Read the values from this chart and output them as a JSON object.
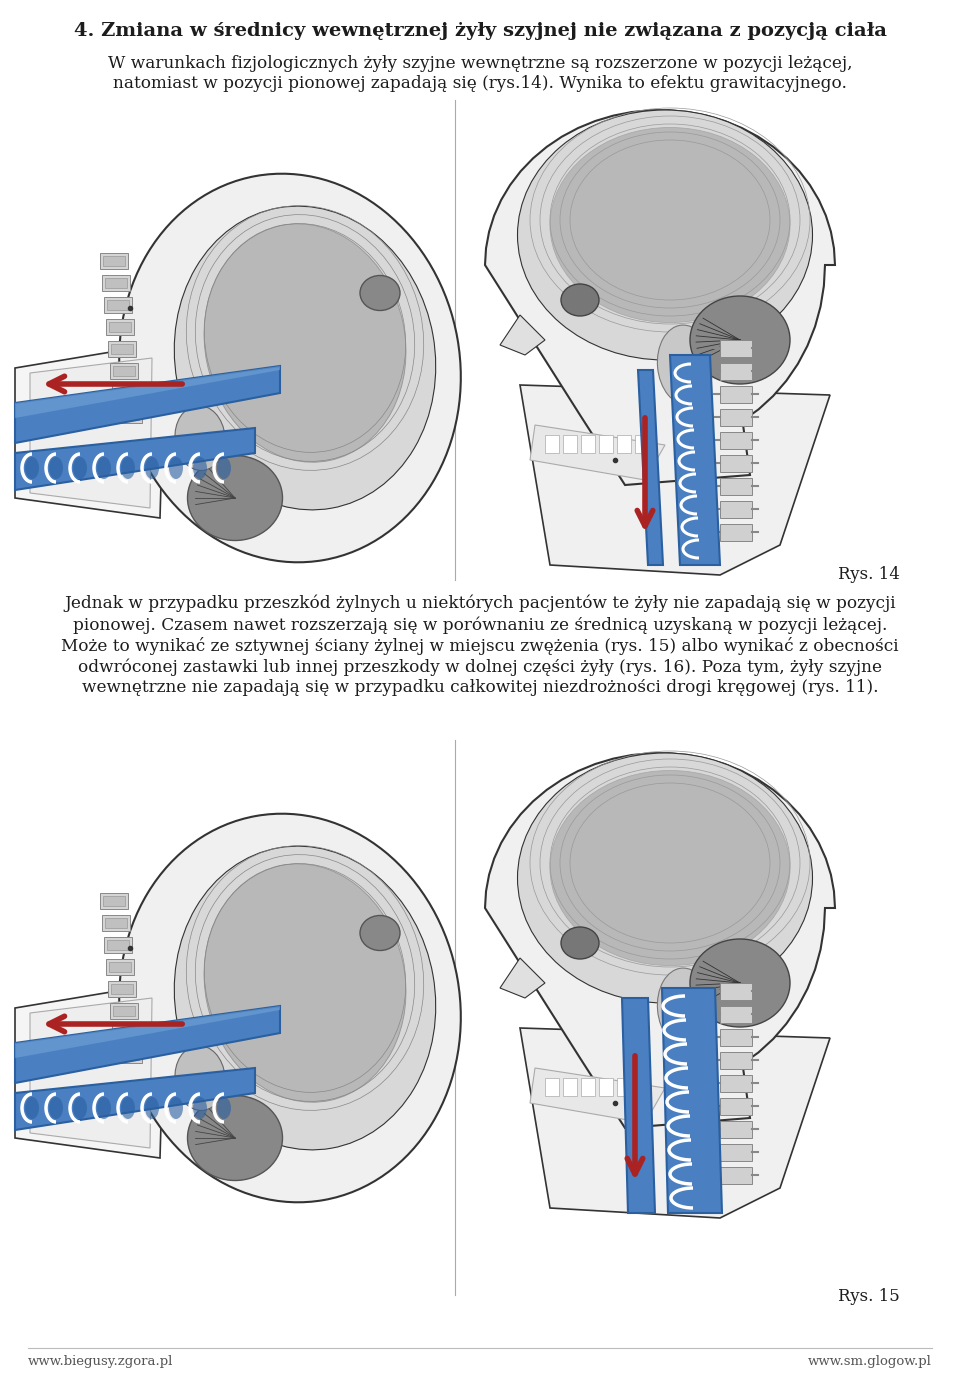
{
  "title": "4. Zmiana w średnicy wewnętrznej żyły szyjnej nie związana z pozycją ciała",
  "para1": "W warunkach fizjologicznych żyły szyjne wewnętrzne są rozszerzone w pozycji leżącej, natomiast w pozycji pionowej zapadają się (rys.14). Wynika to efektu grawitacyjnego.",
  "para2": "Jednak w przypadku przeszkód żylnych u niektórych pacjentów te żyły nie zapadają się w pozycji pionowej. Czasem nawet rozszerzają się w porównaniu ze średnicą uzyskaną w pozycji leżącej. Może to wynikać ze sztywnej ściany żylnej w miejscu zwężenia (rys. 15) albo wynikać z obecności odwróconej zastawki lub innej przeszkody w dolnej części żyły (rys. 16). Poza tym, żyły szyjne wewnętrzne nie zapadają się w przypadku całkowitej niezdrożności drogi kręgowej (rys. 11).",
  "rys14": "Rys. 14",
  "rys15": "Rys. 15",
  "footer_left": "www.biegusy.zgora.pl",
  "footer_right": "www.sm.glogow.pl",
  "bg": "#ffffff",
  "text_dark": "#1c1c1c",
  "blue_vein": "#4a7fc1",
  "blue_vein_dark": "#2a5fa0",
  "blue_vein_light": "#7aabdb",
  "red_arrow": "#aa2222",
  "skull_outline": "#333333",
  "skull_fill": "#f0f0f0",
  "brain_light": "#d8d8d8",
  "brain_mid": "#b8b8b8",
  "brain_dark": "#888888",
  "neck_fill": "#e8e8e8",
  "title_fs": 14,
  "body_fs": 12.2,
  "cap_fs": 12,
  "foot_fs": 9.5
}
